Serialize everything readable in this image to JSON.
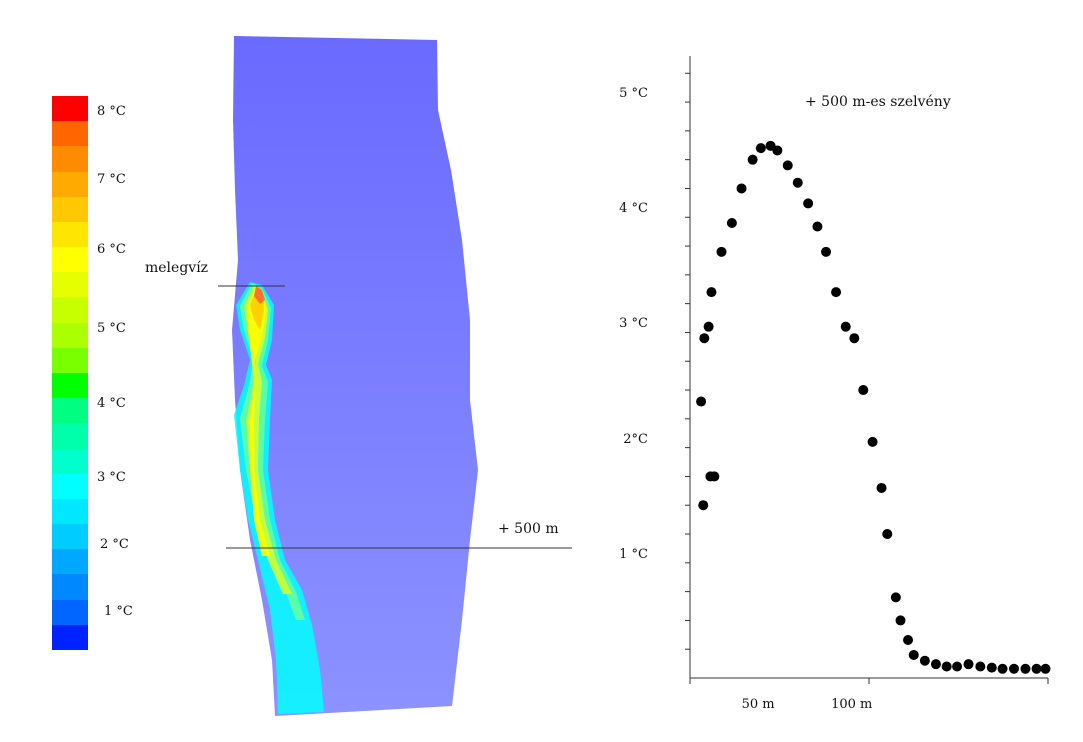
{
  "colorbar": {
    "swatches": [
      "#ff0000",
      "#ff6600",
      "#ff8c00",
      "#ffaa00",
      "#ffc800",
      "#ffe600",
      "#ffff00",
      "#e6ff00",
      "#c8ff00",
      "#aaff00",
      "#78ff00",
      "#00ff00",
      "#00ff80",
      "#00ffaa",
      "#00ffcc",
      "#00ffff",
      "#00e8ff",
      "#00ccff",
      "#00a8ff",
      "#0088ff",
      "#0066ff",
      "#0022ff"
    ],
    "labels": [
      "8 °C",
      "7 °C",
      "6 °C",
      "5 °C",
      "4 °C",
      "3 °C",
      "2 °C",
      "1 °C"
    ]
  },
  "map": {
    "label_warm_water": "melegvíz",
    "label_section": "+ 500 m",
    "river_color": "#7474ff",
    "plume_colors": [
      "#00ffff",
      "#66ff99",
      "#ccff33",
      "#ffff00",
      "#ffcc00",
      "#ff6633"
    ]
  },
  "chart_data": {
    "type": "scatter",
    "title": "+ 500 m-es szelvény",
    "xlabel": "",
    "ylabel": "",
    "xlim": [
      0,
      100
    ],
    "ylim": [
      0,
      5.4
    ],
    "x_tick_labels": [
      {
        "value": 20,
        "label": "50 m"
      },
      {
        "value": 45,
        "label": "100 m"
      }
    ],
    "y_tick_labels": [
      {
        "value": 1,
        "label": "1 °C"
      },
      {
        "value": 2,
        "label": "2°C"
      },
      {
        "value": 3,
        "label": "3 °C"
      },
      {
        "value": 4,
        "label": "4 °C"
      },
      {
        "value": 5,
        "label": "5 °C"
      }
    ],
    "grid": false,
    "series": [
      {
        "name": "",
        "x": [
          3.1,
          3.7,
          4.0,
          5.2,
          5.7,
          6.0,
          6.8,
          8.8,
          11.7,
          14.4,
          17.5,
          19.8,
          22.5,
          24.4,
          27.3,
          30.1,
          33.0,
          35.6,
          38.0,
          40.8,
          43.5,
          45.9,
          48.4,
          51.0,
          53.5,
          55.1,
          57.5,
          58.8,
          60.9,
          62.5,
          65.6,
          68.7,
          71.7,
          74.6,
          77.8,
          81.1,
          84.3,
          87.3,
          90.5,
          93.7,
          96.8,
          99.3
        ],
        "y": [
          2.4,
          1.5,
          2.95,
          3.05,
          1.75,
          3.35,
          1.75,
          3.7,
          3.95,
          4.25,
          4.5,
          4.6,
          4.62,
          4.58,
          4.45,
          4.3,
          4.12,
          3.92,
          3.7,
          3.35,
          3.05,
          2.95,
          2.5,
          2.05,
          1.65,
          1.25,
          0.7,
          0.5,
          0.33,
          0.2,
          0.15,
          0.12,
          0.1,
          0.1,
          0.12,
          0.1,
          0.09,
          0.08,
          0.08,
          0.08,
          0.08,
          0.08
        ]
      }
    ]
  }
}
